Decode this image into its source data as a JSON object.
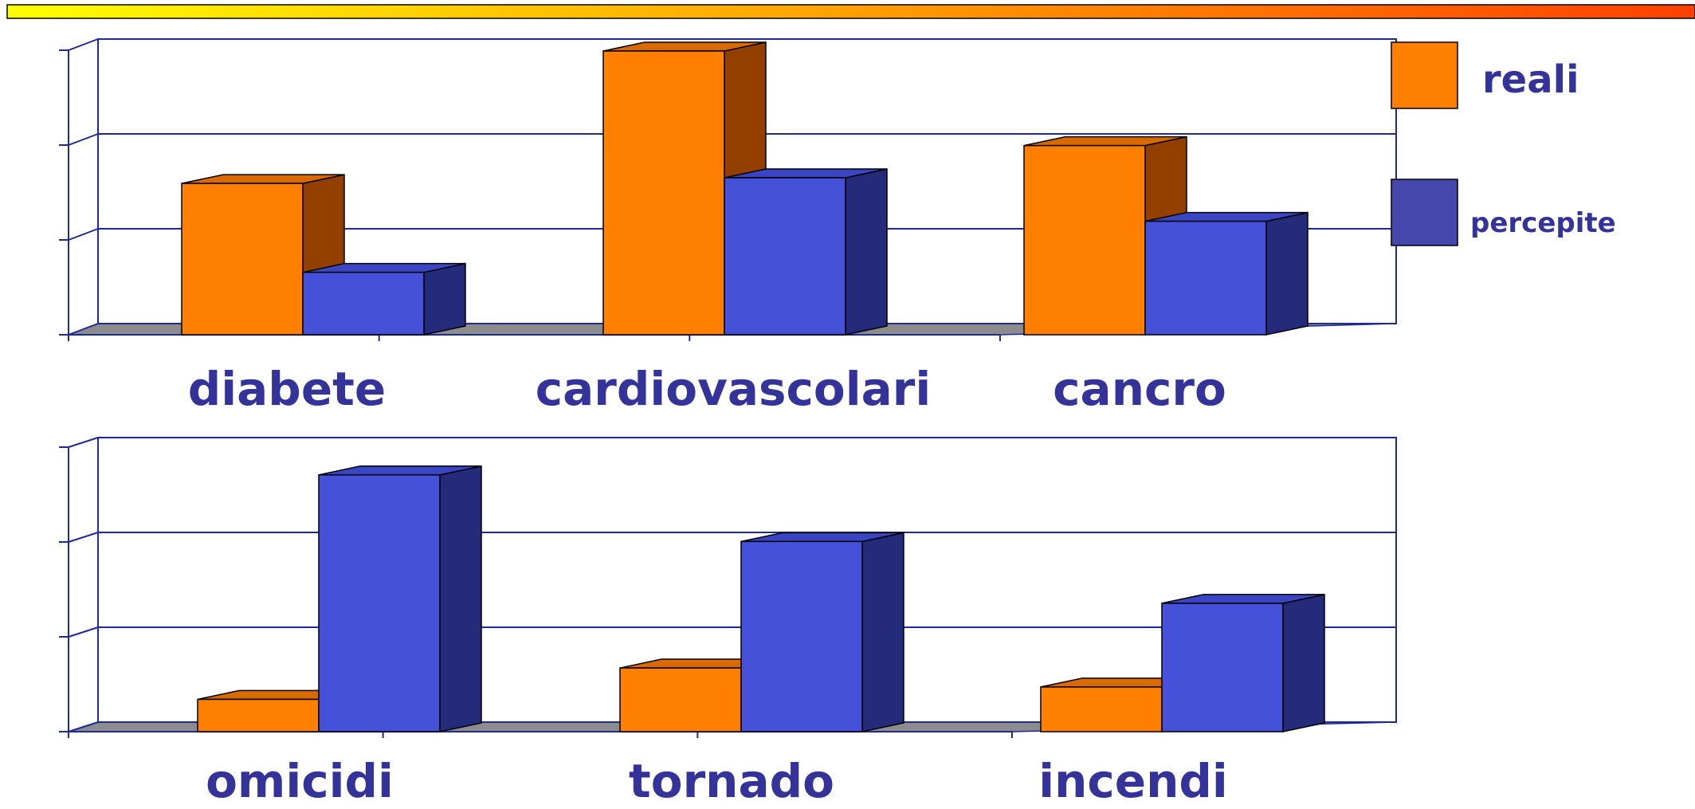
{
  "colors": {
    "reali_front": "#ff7f00",
    "reali_top": "#d86a00",
    "reali_side": "#933f00",
    "percepite_front": "#4651d9",
    "percepite_top": "#3a45c4",
    "percepite_side": "#232b7a",
    "axis": "#1f2a99",
    "floor": "#8c8c8c",
    "label": "#33339a",
    "banner_start": "#ffff00",
    "banner_end": "#ff4000"
  },
  "chart_data": [
    {
      "type": "bar",
      "categories": [
        "diabete",
        "cardiovascolari",
        "cancro"
      ],
      "series": [
        {
          "name": "reali",
          "values": [
            1.6,
            3.0,
            2.0
          ]
        },
        {
          "name": "percepite",
          "values": [
            0.66,
            1.66,
            1.2
          ]
        }
      ],
      "ylim": [
        0,
        3
      ],
      "grid": true,
      "legend": "right",
      "legend_label_size": [
        "large",
        "small"
      ]
    },
    {
      "type": "bar",
      "categories": [
        "omicidi",
        "tornado",
        "incendi"
      ],
      "series": [
        {
          "name": "reali",
          "values": [
            0.34,
            0.67,
            0.47
          ]
        },
        {
          "name": "percepite",
          "values": [
            2.7,
            2.0,
            1.35
          ]
        }
      ],
      "ylim": [
        0,
        3
      ],
      "grid": true
    }
  ]
}
